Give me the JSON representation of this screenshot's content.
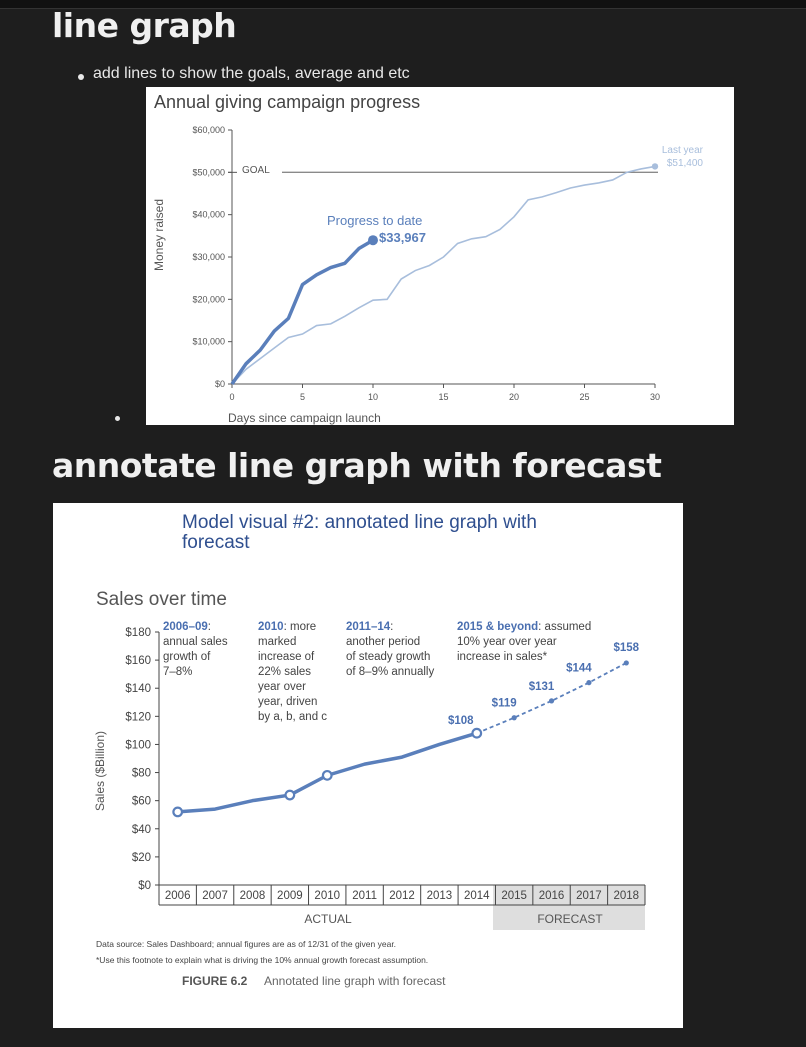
{
  "headings": {
    "line_graph": "line graph",
    "forecast": "annotate line graph with forecast"
  },
  "bullets": {
    "goals_note": "add lines to show the goals, average and etc"
  },
  "chart1": {
    "title": "Annual giving campaign progress",
    "ylabel": "Money raised",
    "xlabel": "Days since campaign launch",
    "goal_label": "GOAL",
    "progress_label": "Progress to date",
    "progress_value": "$33,967",
    "last_year_label": "Last year",
    "last_year_value": "$51,400",
    "colors": {
      "current": "#5a7fbb",
      "last_year": "#a8bedc",
      "goal": "#8a8a8a"
    }
  },
  "chart2": {
    "model_title_line1": "Model visual #2: annotated line graph with",
    "model_title_line2": "forecast",
    "title": "Sales over time",
    "ylabel": "Sales ($Billion)",
    "actual_label": "ACTUAL",
    "forecast_label": "FORECAST",
    "footnote1": "Data source: Sales Dashboard; annual figures are as of 12/31 of the given year.",
    "footnote2": "*Use this footnote to explain what is driving the 10% annual growth forecast assumption.",
    "figure_label": "FIGURE 6.2",
    "figure_caption": "Annotated line graph with forecast",
    "annotations": [
      {
        "head": "2006–09",
        "tail": ":",
        "lines": [
          "annual sales",
          "growth of",
          "7–8%"
        ]
      },
      {
        "head": "2010",
        "tail": ": more",
        "lines": [
          "marked",
          "increase of",
          "22% sales",
          "year over",
          "year, driven",
          "by a, b, and c"
        ]
      },
      {
        "head": "2011–14",
        "tail": ":",
        "lines": [
          "another period",
          "of steady growth",
          "of 8–9% annually"
        ]
      },
      {
        "head": "2015 & beyond",
        "tail": ": assumed",
        "lines": [
          "10% year over year",
          "increase in sales*"
        ]
      }
    ],
    "point_labels": [
      "$108",
      "$119",
      "$131",
      "$144",
      "$158"
    ],
    "colors": {
      "line": "#5a7fbb",
      "accent_text": "#4a6fb0",
      "title": "#2f4f8f",
      "forecast_bg": "#dedede"
    }
  },
  "chart_data": [
    {
      "type": "line",
      "title": "Annual giving campaign progress",
      "xlabel": "Days since campaign launch",
      "ylabel": "Money raised",
      "xlim": [
        0,
        30
      ],
      "ylim": [
        0,
        60000
      ],
      "x_ticks": [
        "0",
        "5",
        "10",
        "15",
        "20",
        "25",
        "30"
      ],
      "y_ticks": [
        "$0",
        "$10,000",
        "$20,000",
        "$30,000",
        "$40,000",
        "$50,000",
        "$60,000"
      ],
      "goal": 50000,
      "series": [
        {
          "name": "Progress to date",
          "x": [
            0,
            1,
            2,
            3,
            4,
            5,
            6,
            7,
            8,
            9,
            10
          ],
          "y": [
            0,
            4800,
            8000,
            12500,
            15500,
            23500,
            25800,
            27500,
            28500,
            32000,
            33967
          ]
        },
        {
          "name": "Last year",
          "x": [
            0,
            1,
            2,
            3,
            4,
            5,
            6,
            7,
            8,
            9,
            10,
            11,
            12,
            13,
            14,
            15,
            16,
            17,
            18,
            19,
            20,
            21,
            22,
            23,
            24,
            25,
            26,
            27,
            28,
            29,
            30
          ],
          "y": [
            0,
            3500,
            6000,
            8500,
            11000,
            11800,
            13800,
            14200,
            16000,
            18000,
            19800,
            20000,
            24800,
            26800,
            28000,
            30000,
            33200,
            34300,
            34800,
            36500,
            39500,
            43500,
            44200,
            45200,
            46300,
            47000,
            47500,
            48200,
            50000,
            50800,
            51400
          ]
        }
      ],
      "grid": false
    },
    {
      "type": "line",
      "title": "Sales over time",
      "ylabel": "Sales ($Billion)",
      "categories": [
        "2006",
        "2007",
        "2008",
        "2009",
        "2010",
        "2011",
        "2012",
        "2013",
        "2014",
        "2015",
        "2016",
        "2017",
        "2018"
      ],
      "ylim": [
        0,
        180
      ],
      "y_ticks": [
        "$0",
        "$20",
        "$40",
        "$60",
        "$80",
        "$100",
        "$120",
        "$140",
        "$160",
        "$180"
      ],
      "series": [
        {
          "name": "ACTUAL",
          "values": [
            52,
            54,
            60,
            64,
            78,
            86,
            91,
            100,
            108,
            null,
            null,
            null,
            null
          ]
        },
        {
          "name": "FORECAST",
          "values": [
            null,
            null,
            null,
            null,
            null,
            null,
            null,
            null,
            108,
            119,
            131,
            144,
            158
          ]
        }
      ],
      "grid": false
    }
  ]
}
